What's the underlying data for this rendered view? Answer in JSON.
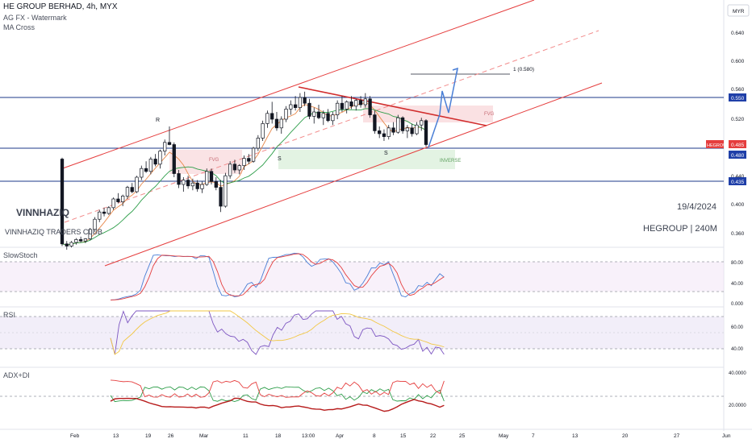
{
  "header": {
    "symbol_line": "HE GROUP BERHAD, 4h, MYX",
    "indicator_1": "AG FX - Watermark",
    "indicator_2": "MA Cross",
    "currency": "MYR"
  },
  "watermark": {
    "author": "VINNHAZIQ",
    "club": "VINNHAZIQ TRADERS CLUB",
    "date": "19/4/2024",
    "ticker_tf": "HEGROUP | 240M"
  },
  "annotations": {
    "target_label": "1 (0.580)",
    "fvg_left": "FVG",
    "fvg_right": "FVG",
    "inverse": "INVERSE",
    "r_mark": "R",
    "s_mark_1": "S",
    "s_mark_2": "S"
  },
  "price_badges": {
    "level_high": "0.550",
    "level_mid": "0.480",
    "level_low": "0.435",
    "ticker": "HEGROUP",
    "last": "0.485"
  },
  "panes": {
    "slowstoch": "SlowStoch",
    "rsi": "RSI",
    "adx": "ADX+DI"
  },
  "colors": {
    "bull": "#ffffff",
    "bear": "#131722",
    "channel": "#e53e3e",
    "hline": "#1e3a8a",
    "projection": "#4a7fd6",
    "badge_blue": "#1f3fa8",
    "badge_red": "#e53e3e"
  },
  "chart_data": {
    "type": "candlestick",
    "price_axis": {
      "min": 0.345,
      "max": 0.67,
      "ticks": [
        "0.640",
        "0.600",
        "0.560",
        "0.520",
        "0.440",
        "0.400",
        "0.360"
      ]
    },
    "x_ticks": [
      "Feb",
      "13",
      "19",
      "26",
      "Mar",
      "11",
      "18",
      "13:00",
      "Apr",
      "8",
      "15",
      "22",
      "25",
      "May",
      "7",
      "13",
      "20",
      "27",
      "Jun"
    ],
    "horizontal_levels": [
      0.55,
      0.48,
      0.435
    ],
    "target": 0.58,
    "candles_ohlc": [
      [
        0.465,
        0.467,
        0.345,
        0.348
      ],
      [
        0.348,
        0.352,
        0.34,
        0.345
      ],
      [
        0.345,
        0.352,
        0.343,
        0.35
      ],
      [
        0.35,
        0.356,
        0.347,
        0.354
      ],
      [
        0.354,
        0.358,
        0.35,
        0.352
      ],
      [
        0.352,
        0.356,
        0.349,
        0.355
      ],
      [
        0.355,
        0.37,
        0.353,
        0.368
      ],
      [
        0.368,
        0.385,
        0.364,
        0.382
      ],
      [
        0.382,
        0.395,
        0.378,
        0.392
      ],
      [
        0.392,
        0.398,
        0.386,
        0.39
      ],
      [
        0.39,
        0.4,
        0.388,
        0.398
      ],
      [
        0.398,
        0.412,
        0.395,
        0.41
      ],
      [
        0.41,
        0.418,
        0.404,
        0.406
      ],
      [
        0.406,
        0.416,
        0.4,
        0.414
      ],
      [
        0.414,
        0.428,
        0.41,
        0.426
      ],
      [
        0.426,
        0.432,
        0.418,
        0.42
      ],
      [
        0.42,
        0.442,
        0.418,
        0.44
      ],
      [
        0.44,
        0.456,
        0.436,
        0.452
      ],
      [
        0.452,
        0.462,
        0.446,
        0.448
      ],
      [
        0.448,
        0.468,
        0.444,
        0.465
      ],
      [
        0.465,
        0.472,
        0.455,
        0.458
      ],
      [
        0.458,
        0.478,
        0.452,
        0.476
      ],
      [
        0.476,
        0.492,
        0.47,
        0.488
      ],
      [
        0.488,
        0.51,
        0.484,
        0.485
      ],
      [
        0.485,
        0.488,
        0.44,
        0.445
      ],
      [
        0.445,
        0.45,
        0.425,
        0.43
      ],
      [
        0.43,
        0.44,
        0.42,
        0.436
      ],
      [
        0.436,
        0.442,
        0.424,
        0.428
      ],
      [
        0.428,
        0.438,
        0.422,
        0.432
      ],
      [
        0.432,
        0.436,
        0.42,
        0.424
      ],
      [
        0.424,
        0.434,
        0.418,
        0.43
      ],
      [
        0.43,
        0.452,
        0.428,
        0.448
      ],
      [
        0.448,
        0.452,
        0.43,
        0.434
      ],
      [
        0.434,
        0.44,
        0.422,
        0.426
      ],
      [
        0.426,
        0.436,
        0.392,
        0.4
      ],
      [
        0.4,
        0.446,
        0.398,
        0.442
      ],
      [
        0.442,
        0.462,
        0.438,
        0.458
      ],
      [
        0.458,
        0.464,
        0.446,
        0.45
      ],
      [
        0.45,
        0.458,
        0.444,
        0.456
      ],
      [
        0.456,
        0.47,
        0.45,
        0.466
      ],
      [
        0.466,
        0.472,
        0.458,
        0.462
      ],
      [
        0.462,
        0.482,
        0.46,
        0.48
      ],
      [
        0.48,
        0.498,
        0.476,
        0.494
      ],
      [
        0.494,
        0.518,
        0.49,
        0.514
      ],
      [
        0.514,
        0.532,
        0.508,
        0.528
      ],
      [
        0.528,
        0.544,
        0.514,
        0.52
      ],
      [
        0.52,
        0.53,
        0.504,
        0.508
      ],
      [
        0.508,
        0.524,
        0.5,
        0.52
      ],
      [
        0.52,
        0.538,
        0.516,
        0.534
      ],
      [
        0.534,
        0.546,
        0.526,
        0.54
      ],
      [
        0.54,
        0.552,
        0.532,
        0.536
      ],
      [
        0.536,
        0.556,
        0.53,
        0.55
      ],
      [
        0.55,
        0.558,
        0.538,
        0.542
      ],
      [
        0.542,
        0.548,
        0.52,
        0.524
      ],
      [
        0.524,
        0.536,
        0.514,
        0.53
      ],
      [
        0.53,
        0.54,
        0.52,
        0.522
      ],
      [
        0.522,
        0.532,
        0.512,
        0.528
      ],
      [
        0.528,
        0.534,
        0.516,
        0.518
      ],
      [
        0.518,
        0.53,
        0.512,
        0.526
      ],
      [
        0.526,
        0.546,
        0.52,
        0.542
      ],
      [
        0.542,
        0.552,
        0.53,
        0.534
      ],
      [
        0.534,
        0.546,
        0.528,
        0.544
      ],
      [
        0.544,
        0.552,
        0.534,
        0.538
      ],
      [
        0.538,
        0.548,
        0.532,
        0.546
      ],
      [
        0.546,
        0.552,
        0.536,
        0.54
      ],
      [
        0.54,
        0.556,
        0.536,
        0.548
      ],
      [
        0.548,
        0.552,
        0.522,
        0.526
      ],
      [
        0.526,
        0.532,
        0.5,
        0.504
      ],
      [
        0.504,
        0.51,
        0.494,
        0.5
      ],
      [
        0.5,
        0.506,
        0.49,
        0.496
      ],
      [
        0.496,
        0.512,
        0.492,
        0.508
      ],
      [
        0.508,
        0.516,
        0.498,
        0.502
      ],
      [
        0.502,
        0.526,
        0.5,
        0.522
      ],
      [
        0.522,
        0.524,
        0.5,
        0.504
      ],
      [
        0.504,
        0.512,
        0.494,
        0.508
      ],
      [
        0.508,
        0.514,
        0.496,
        0.5
      ],
      [
        0.5,
        0.516,
        0.498,
        0.512
      ],
      [
        0.512,
        0.522,
        0.504,
        0.518
      ],
      [
        0.518,
        0.52,
        0.482,
        0.485
      ]
    ],
    "slowstoch_range": [
      0,
      100
    ],
    "rsi_range": [
      30,
      70
    ],
    "adx_range": [
      0,
      40
    ]
  }
}
